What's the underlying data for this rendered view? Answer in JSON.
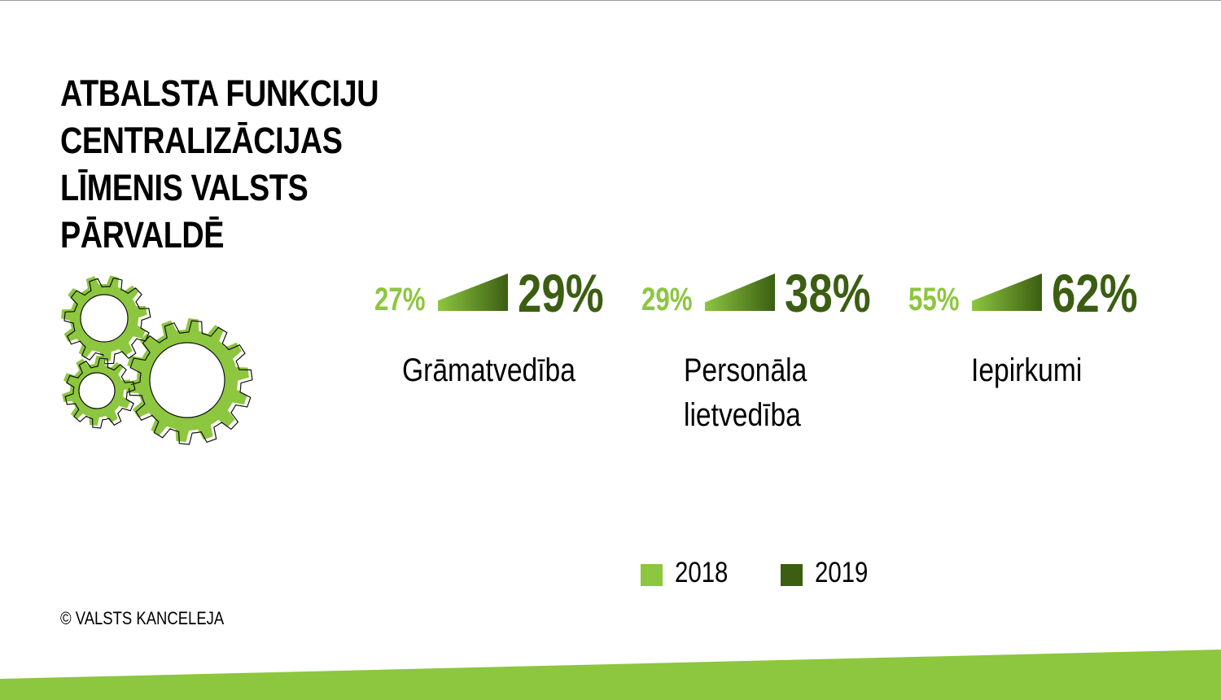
{
  "title_lines": [
    "ATBALSTA FUNKCIJU",
    "CENTRALIZĀCIJAS",
    "LĪMENIS VALSTS",
    "PĀRVALDĒ"
  ],
  "copyright": "© VALSTS KANCELEJA",
  "colors": {
    "year_2018": "#8dc63f",
    "year_2019": "#3b5e12",
    "band": "#8dc63f"
  },
  "chart_data": {
    "type": "bar",
    "title": "ATBALSTA FUNKCIJU CENTRALIZĀCIJAS LĪMENIS VALSTS PĀRVALDĒ",
    "categories": [
      "Grāmatvedība",
      "Personāla lietvedība",
      "Iepirkumi"
    ],
    "series": [
      {
        "name": "2018",
        "values": [
          27,
          29,
          55
        ],
        "labels": [
          "27%",
          "29%",
          "55%"
        ]
      },
      {
        "name": "2019",
        "values": [
          29,
          38,
          62
        ],
        "labels": [
          "29%",
          "38%",
          "62%"
        ]
      }
    ],
    "unit": "%",
    "legend": "bottom"
  },
  "categories_display": [
    [
      "Grāmatvedība"
    ],
    [
      "Personāla",
      "lietvedība"
    ],
    [
      "Iepirkumi"
    ]
  ],
  "legend": [
    {
      "label": "2018"
    },
    {
      "label": "2019"
    }
  ]
}
